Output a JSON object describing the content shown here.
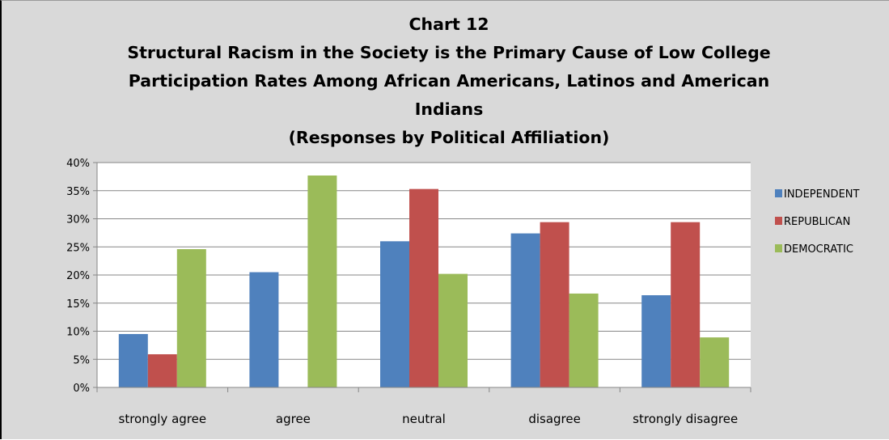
{
  "chart_data": {
    "type": "bar",
    "title_lines": [
      "Chart 12",
      "Structural Racism in the Society is the  Primary Cause of  Low College",
      "Participation  Rates Among African Americans, Latinos  and American",
      "Indians",
      "(Responses by Political Affiliation)"
    ],
    "categories": [
      "strongly agree",
      "agree",
      "neutral",
      "disagree",
      "strongly disagree"
    ],
    "series": [
      {
        "name": "INDEPENDENT",
        "color": "#4f81bd",
        "values": [
          9.5,
          20.5,
          26.0,
          27.4,
          16.4
        ]
      },
      {
        "name": "REPUBLICAN",
        "color": "#c0504d",
        "values": [
          5.9,
          0,
          35.3,
          29.4,
          29.4
        ]
      },
      {
        "name": "DEMOCRATIC",
        "color": "#9bbb59",
        "values": [
          24.6,
          37.7,
          20.2,
          16.7,
          8.9
        ]
      }
    ],
    "ylim": [
      0,
      40
    ],
    "yticks": [
      "0%",
      "5%",
      "10%",
      "15%",
      "20%",
      "25%",
      "30%",
      "35%",
      "40%"
    ],
    "grid": true,
    "legend_position": "right"
  }
}
